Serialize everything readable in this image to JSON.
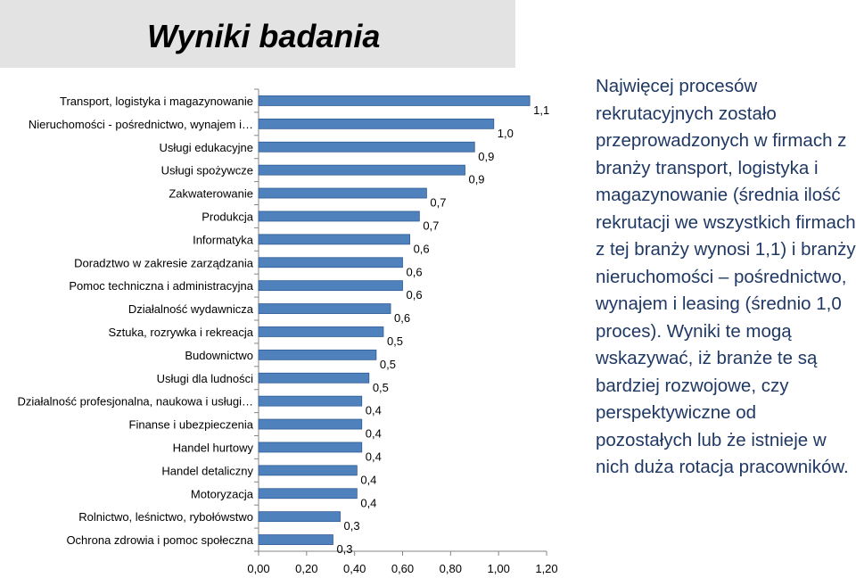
{
  "title": "Wyniki badania",
  "note": "Najwięcej procesów rekrutacyjnych zostało przeprowadzonych w firmach z branży transport, logistyka i magazynowanie (średnia ilość rekrutacji we wszystkich firmach z tej branży wynosi 1,1) i branży nieruchomości – pośrednictwo, wynajem i leasing (średnio 1,0 proces). Wyniki te mogą wskazywać, iż branże te są bardziej rozwojowe, czy perspektywiczne od pozostałych lub że istnieje w nich duża rotacja pracowników.",
  "colors": {
    "bar": "#4f81bd",
    "bar_edge": "#2f5c94",
    "title_bg": "#e3e3e3",
    "note_text": "#1f3864"
  },
  "chart_data": {
    "type": "bar",
    "orientation": "horizontal",
    "categories": [
      "Transport, logistyka i magazynowanie",
      "Nieruchomości - pośrednictwo, wynajem i…",
      "Usługi edukacyjne",
      "Usługi spożywcze",
      "Zakwaterowanie",
      "Produkcja",
      "Informatyka",
      "Doradztwo w zakresie zarządzania",
      "Pomoc techniczna i administracyjna",
      "Działalność wydawnicza",
      "Sztuka, rozrywka i rekreacja",
      "Budownictwo",
      "Usługi dla ludności",
      "Działalność profesjonalna, naukowa i usługi…",
      "Finanse i ubezpieczenia",
      "Handel hurtowy",
      "Handel detaliczny",
      "Motoryzacja",
      "Rolnictwo, leśnictwo, rybołówstwo",
      "Ochrona zdrowia i pomoc społeczna"
    ],
    "values": [
      1.13,
      0.98,
      0.9,
      0.86,
      0.7,
      0.67,
      0.63,
      0.6,
      0.6,
      0.55,
      0.52,
      0.49,
      0.46,
      0.43,
      0.43,
      0.43,
      0.41,
      0.41,
      0.34,
      0.31
    ],
    "value_labels": [
      "1,1",
      "1,0",
      "0,9",
      "0,9",
      "0,7",
      "0,7",
      "0,6",
      "0,6",
      "0,6",
      "0,6",
      "0,5",
      "0,5",
      "0,5",
      "0,4",
      "0,4",
      "0,4",
      "0,4",
      "0,4",
      "0,3",
      "0,3"
    ],
    "xlim": [
      0,
      1.2
    ],
    "xticks": [
      0,
      0.2,
      0.4,
      0.6,
      0.8,
      1.0,
      1.2
    ],
    "xtick_labels": [
      "0,00",
      "0,20",
      "0,40",
      "0,60",
      "0,80",
      "1,00",
      "1,20"
    ],
    "grid": false,
    "legend": "none"
  }
}
